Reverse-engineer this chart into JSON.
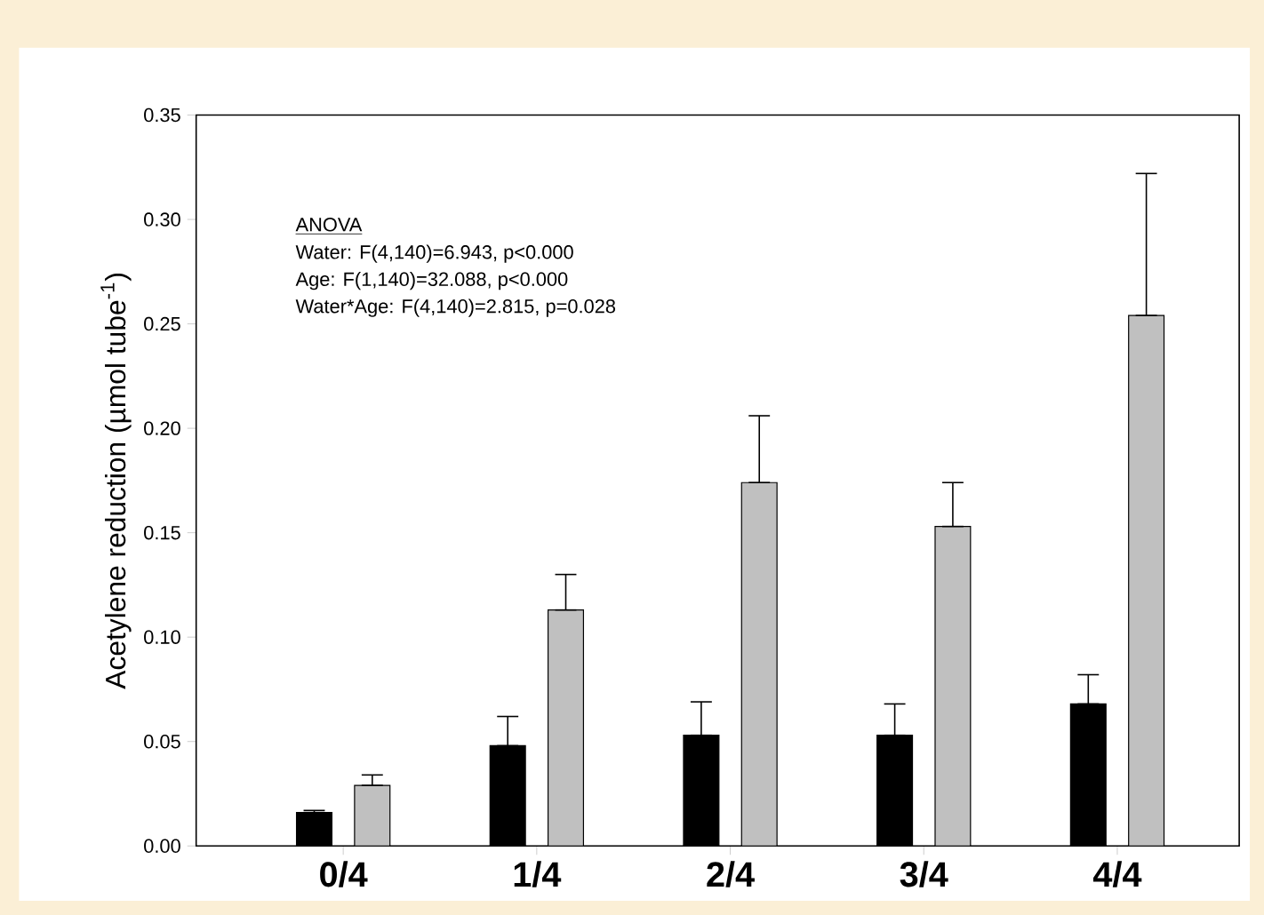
{
  "chart_data": {
    "type": "bar",
    "ylabel": "Acetylene reduction (µmol tube$^{-1}$)",
    "categories": [
      "0/4",
      "1/4",
      "2/4",
      "3/4",
      "4/4"
    ],
    "series": [
      {
        "color": "#000000",
        "values": [
          0.016,
          0.048,
          0.053,
          0.053,
          0.068
        ],
        "errors": [
          [
            0.016,
            0.017
          ],
          [
            0.048,
            0.062
          ],
          [
            0.053,
            0.069
          ],
          [
            0.053,
            0.068
          ],
          [
            0.068,
            0.082
          ]
        ]
      },
      {
        "color": "#c0c0c0",
        "values": [
          0.029,
          0.113,
          0.174,
          0.153,
          0.254
        ],
        "errors": [
          [
            0.029,
            0.034
          ],
          [
            0.113,
            0.13
          ],
          [
            0.174,
            0.206
          ],
          [
            0.153,
            0.174
          ],
          [
            0.254,
            0.322
          ]
        ]
      }
    ],
    "ylim": [
      0,
      0.35
    ],
    "yticks": [
      {
        "value": 0,
        "label": "0.00"
      },
      {
        "value": 0.05,
        "label": "0.05"
      },
      {
        "value": 0.1,
        "label": "0.10"
      },
      {
        "value": 0.15,
        "label": "0.15"
      },
      {
        "value": 0.2,
        "label": "0.20"
      },
      {
        "value": 0.25,
        "label": "0.25"
      },
      {
        "value": 0.3,
        "label": "0.30"
      },
      {
        "value": 0.35,
        "label": "0.35"
      }
    ],
    "annotations": [
      "ANOVA",
      "Water: F(4,140)=6.943, p<0.000",
      "Age: F(1,140)=32.088, p<0.000",
      "Water*Age: F(4,140)=2.815, p=0.028"
    ]
  }
}
